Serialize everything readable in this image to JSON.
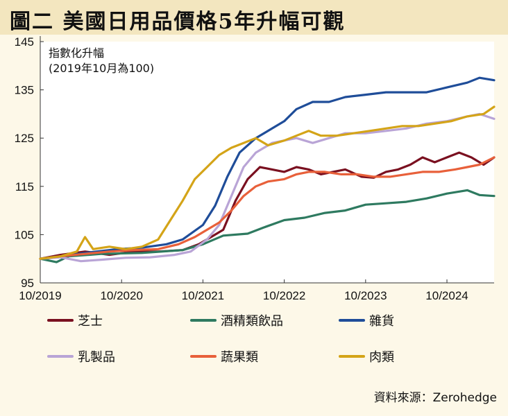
{
  "title": "圖二  美國日用品價格5年升幅可觀",
  "source": "資料來源：Zerohedge",
  "chart_data": {
    "type": "line",
    "annotation_lines": [
      "指數化升幅",
      "(2019年10月為100)"
    ],
    "ylim": [
      95,
      145
    ],
    "yticks": [
      95,
      105,
      115,
      125,
      135,
      145
    ],
    "xlim": [
      2019.75,
      2025.33
    ],
    "xticks": [
      {
        "x": 2019.75,
        "label": "10/2019"
      },
      {
        "x": 2020.75,
        "label": "10/2020"
      },
      {
        "x": 2021.75,
        "label": "10/2021"
      },
      {
        "x": 2022.75,
        "label": "10/2022"
      },
      {
        "x": 2023.75,
        "label": "10/2023"
      },
      {
        "x": 2024.75,
        "label": "10/2024"
      }
    ],
    "grid": false,
    "legend_position": "bottom",
    "series": [
      {
        "name": "芝士",
        "color": "#7a1020",
        "points": [
          [
            2019.75,
            100
          ],
          [
            2020.0,
            100.8
          ],
          [
            2020.3,
            101.5
          ],
          [
            2020.6,
            100.8
          ],
          [
            2020.9,
            101.5
          ],
          [
            2021.2,
            101.5
          ],
          [
            2021.5,
            101.8
          ],
          [
            2021.7,
            103
          ],
          [
            2021.85,
            104.5
          ],
          [
            2022.0,
            106
          ],
          [
            2022.15,
            112
          ],
          [
            2022.3,
            116.5
          ],
          [
            2022.45,
            119
          ],
          [
            2022.6,
            118.5
          ],
          [
            2022.75,
            118
          ],
          [
            2022.9,
            119
          ],
          [
            2023.05,
            118.5
          ],
          [
            2023.2,
            117.5
          ],
          [
            2023.35,
            118
          ],
          [
            2023.5,
            118.5
          ],
          [
            2023.7,
            117
          ],
          [
            2023.85,
            116.8
          ],
          [
            2024.0,
            118
          ],
          [
            2024.15,
            118.5
          ],
          [
            2024.3,
            119.5
          ],
          [
            2024.45,
            121
          ],
          [
            2024.6,
            120
          ],
          [
            2024.75,
            121
          ],
          [
            2024.9,
            122
          ],
          [
            2025.05,
            121
          ],
          [
            2025.2,
            119.5
          ],
          [
            2025.33,
            121
          ]
        ]
      },
      {
        "name": "酒精類飲品",
        "color": "#2e7a60",
        "points": [
          [
            2019.75,
            100
          ],
          [
            2019.95,
            99.3
          ],
          [
            2020.1,
            100.5
          ],
          [
            2020.5,
            101
          ],
          [
            2021.0,
            101.2
          ],
          [
            2021.5,
            101.8
          ],
          [
            2021.75,
            103
          ],
          [
            2022.0,
            104.8
          ],
          [
            2022.3,
            105.2
          ],
          [
            2022.5,
            106.5
          ],
          [
            2022.75,
            108
          ],
          [
            2023.0,
            108.5
          ],
          [
            2023.25,
            109.5
          ],
          [
            2023.5,
            110
          ],
          [
            2023.75,
            111.2
          ],
          [
            2024.0,
            111.5
          ],
          [
            2024.25,
            111.8
          ],
          [
            2024.5,
            112.5
          ],
          [
            2024.75,
            113.5
          ],
          [
            2025.0,
            114.2
          ],
          [
            2025.15,
            113.2
          ],
          [
            2025.33,
            113
          ]
        ]
      },
      {
        "name": "雜貨",
        "color": "#1f4d99",
        "points": [
          [
            2019.75,
            100
          ],
          [
            2020.0,
            100.5
          ],
          [
            2020.3,
            101.2
          ],
          [
            2020.7,
            102
          ],
          [
            2021.0,
            102.3
          ],
          [
            2021.3,
            103
          ],
          [
            2021.5,
            104
          ],
          [
            2021.75,
            107
          ],
          [
            2021.9,
            111
          ],
          [
            2022.05,
            117
          ],
          [
            2022.2,
            122
          ],
          [
            2022.4,
            125
          ],
          [
            2022.6,
            127
          ],
          [
            2022.75,
            128.5
          ],
          [
            2022.9,
            131
          ],
          [
            2023.1,
            132.5
          ],
          [
            2023.3,
            132.5
          ],
          [
            2023.5,
            133.5
          ],
          [
            2023.75,
            134
          ],
          [
            2024.0,
            134.5
          ],
          [
            2024.25,
            134.5
          ],
          [
            2024.5,
            134.5
          ],
          [
            2024.75,
            135.5
          ],
          [
            2025.0,
            136.5
          ],
          [
            2025.15,
            137.5
          ],
          [
            2025.33,
            137
          ]
        ]
      },
      {
        "name": "乳製品",
        "color": "#b9a4d6",
        "points": [
          [
            2019.75,
            100
          ],
          [
            2020.0,
            100.3
          ],
          [
            2020.25,
            99.5
          ],
          [
            2020.5,
            99.8
          ],
          [
            2020.8,
            100.2
          ],
          [
            2021.1,
            100.3
          ],
          [
            2021.4,
            100.8
          ],
          [
            2021.6,
            101.5
          ],
          [
            2021.8,
            104
          ],
          [
            2021.95,
            107
          ],
          [
            2022.1,
            113
          ],
          [
            2022.25,
            119
          ],
          [
            2022.4,
            122
          ],
          [
            2022.6,
            124
          ],
          [
            2022.75,
            124.5
          ],
          [
            2022.9,
            125
          ],
          [
            2023.1,
            124
          ],
          [
            2023.3,
            125
          ],
          [
            2023.5,
            126
          ],
          [
            2023.75,
            126
          ],
          [
            2024.0,
            126.5
          ],
          [
            2024.25,
            127
          ],
          [
            2024.5,
            128
          ],
          [
            2024.75,
            128.5
          ],
          [
            2025.0,
            129.5
          ],
          [
            2025.15,
            130
          ],
          [
            2025.33,
            129
          ]
        ]
      },
      {
        "name": "蔬果類",
        "color": "#e8603a",
        "points": [
          [
            2019.75,
            100
          ],
          [
            2020.0,
            100.5
          ],
          [
            2020.3,
            101
          ],
          [
            2020.6,
            101.5
          ],
          [
            2020.9,
            101.8
          ],
          [
            2021.2,
            102
          ],
          [
            2021.45,
            103
          ],
          [
            2021.65,
            104.5
          ],
          [
            2021.8,
            106
          ],
          [
            2021.95,
            107.5
          ],
          [
            2022.1,
            110
          ],
          [
            2022.25,
            113
          ],
          [
            2022.4,
            115
          ],
          [
            2022.55,
            116
          ],
          [
            2022.75,
            116.5
          ],
          [
            2022.9,
            117.5
          ],
          [
            2023.05,
            118
          ],
          [
            2023.25,
            118
          ],
          [
            2023.45,
            117.5
          ],
          [
            2023.65,
            117.5
          ],
          [
            2023.85,
            117
          ],
          [
            2024.05,
            117
          ],
          [
            2024.25,
            117.5
          ],
          [
            2024.45,
            118
          ],
          [
            2024.65,
            118
          ],
          [
            2024.85,
            118.5
          ],
          [
            2025.0,
            119
          ],
          [
            2025.15,
            119.5
          ],
          [
            2025.33,
            121
          ]
        ]
      },
      {
        "name": "肉類",
        "color": "#d4a418",
        "points": [
          [
            2019.75,
            100
          ],
          [
            2020.0,
            100.5
          ],
          [
            2020.2,
            101.5
          ],
          [
            2020.3,
            104.5
          ],
          [
            2020.4,
            102
          ],
          [
            2020.6,
            102.5
          ],
          [
            2020.8,
            102
          ],
          [
            2021.0,
            102.5
          ],
          [
            2021.2,
            104
          ],
          [
            2021.35,
            108
          ],
          [
            2021.5,
            112
          ],
          [
            2021.65,
            116.5
          ],
          [
            2021.8,
            119
          ],
          [
            2021.95,
            121.5
          ],
          [
            2022.1,
            123
          ],
          [
            2022.25,
            124
          ],
          [
            2022.4,
            125
          ],
          [
            2022.55,
            123.5
          ],
          [
            2022.75,
            124.5
          ],
          [
            2022.9,
            125.5
          ],
          [
            2023.05,
            126.5
          ],
          [
            2023.2,
            125.5
          ],
          [
            2023.4,
            125.5
          ],
          [
            2023.6,
            126
          ],
          [
            2023.8,
            126.5
          ],
          [
            2024.0,
            127
          ],
          [
            2024.2,
            127.5
          ],
          [
            2024.4,
            127.5
          ],
          [
            2024.6,
            128
          ],
          [
            2024.8,
            128.5
          ],
          [
            2025.0,
            129.5
          ],
          [
            2025.2,
            130
          ],
          [
            2025.33,
            131.5
          ]
        ]
      }
    ]
  }
}
